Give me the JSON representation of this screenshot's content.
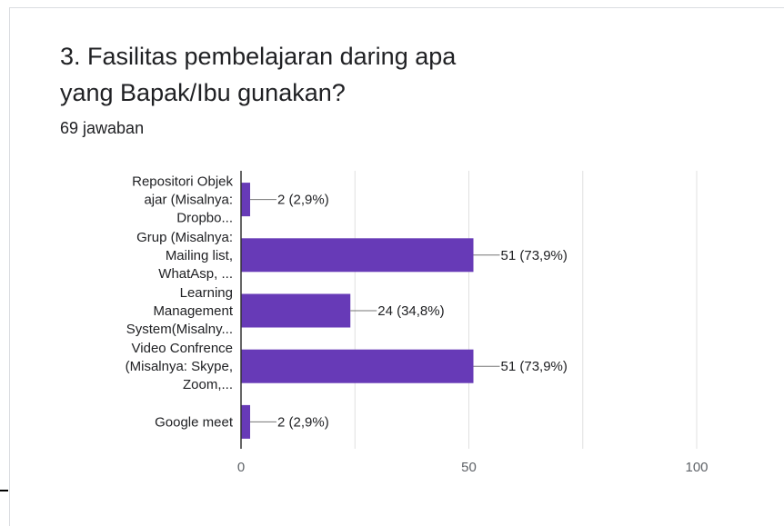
{
  "question": {
    "line1": "3. Fasilitas pembelajaran daring apa",
    "line2": "yang Bapak/Ibu gunakan?"
  },
  "responses_label": "69 jawaban",
  "colors": {
    "bar": "#673ab7",
    "grid": "#e0e0e0",
    "axis": "#333333"
  },
  "chart_data": {
    "type": "bar",
    "orientation": "horizontal",
    "categories": [
      [
        "Repositori Objek",
        "ajar (Misalnya:",
        "Dropbo..."
      ],
      [
        "Grup (Misalnya:",
        "Mailing list,",
        "WhatAsp, ..."
      ],
      [
        "Learning",
        "Management",
        "System(Misalny..."
      ],
      [
        "Video Confrence",
        "(Misalnya: Skype,",
        "Zoom,..."
      ],
      [
        "Google meet"
      ]
    ],
    "values": [
      2,
      51,
      24,
      51,
      2
    ],
    "value_labels": [
      "2 (2,9%)",
      "51 (73,9%)",
      "24 (34,8%)",
      "51 (73,9%)",
      "2 (2,9%)"
    ],
    "xlim": [
      0,
      100
    ],
    "xticks": [
      "0",
      "50",
      "100"
    ],
    "grid": true
  }
}
